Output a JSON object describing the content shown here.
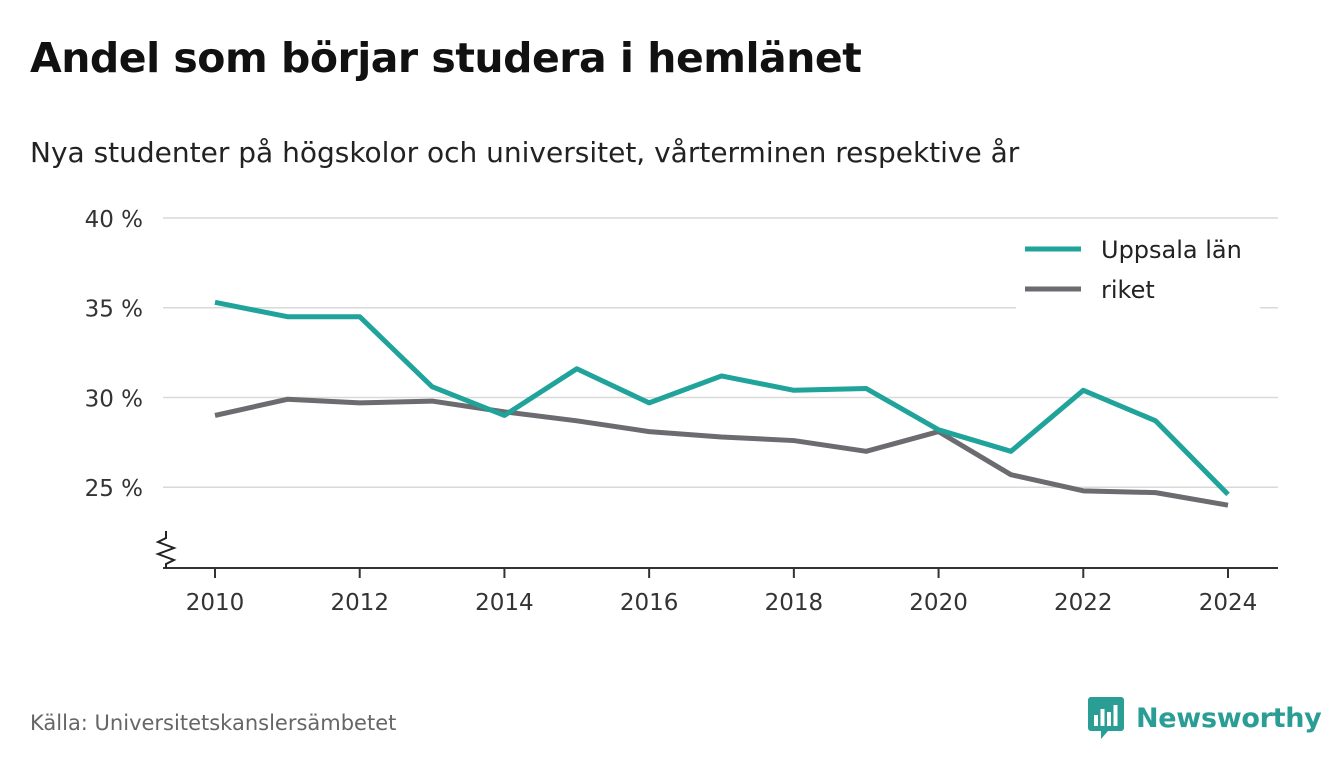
{
  "header": {
    "title": "Andel som börjar studera i hemlänet",
    "subtitle": "Nya studenter på högskolor och universitet, vårterminen respektive år"
  },
  "footer": {
    "source": "Källa: Universitetskanslersämbetet",
    "brand": "Newsworthy",
    "brand_icon": "bar-chart-speech-bubble-icon"
  },
  "colors": {
    "uppsala": "#1fa39a",
    "riket": "#6b6b70",
    "grid": "#d9d9d9",
    "axis": "#333333",
    "brand": "#2a9d94"
  },
  "chart_data": {
    "type": "line",
    "x": [
      2010,
      2011,
      2012,
      2013,
      2014,
      2015,
      2016,
      2017,
      2018,
      2019,
      2020,
      2021,
      2022,
      2023,
      2024
    ],
    "series": [
      {
        "name": "Uppsala län",
        "color": "#1fa39a",
        "values": [
          35.3,
          34.5,
          34.5,
          30.6,
          29.0,
          31.6,
          29.7,
          31.2,
          30.4,
          30.5,
          28.2,
          27.0,
          30.4,
          28.7,
          24.6
        ]
      },
      {
        "name": "riket",
        "color": "#6b6b70",
        "values": [
          29.0,
          29.9,
          29.7,
          29.8,
          29.2,
          28.7,
          28.1,
          27.8,
          27.6,
          27.0,
          28.1,
          25.7,
          24.8,
          24.7,
          24.0
        ]
      }
    ],
    "xticks": [
      2010,
      2012,
      2014,
      2016,
      2018,
      2020,
      2022,
      2024
    ],
    "xtick_labels": [
      "2010",
      "2012",
      "2014",
      "2016",
      "2018",
      "2020",
      "2022",
      "2024"
    ],
    "yticks": [
      25,
      30,
      35,
      40
    ],
    "ytick_labels": [
      "25 %",
      "30 %",
      "35 %",
      "40 %"
    ],
    "ylim": [
      20.5,
      40
    ],
    "xlim": [
      2010,
      2024
    ],
    "y_axis_break": true,
    "grid": "horizontal",
    "legend": "top-right",
    "xlabel": "",
    "ylabel": ""
  }
}
